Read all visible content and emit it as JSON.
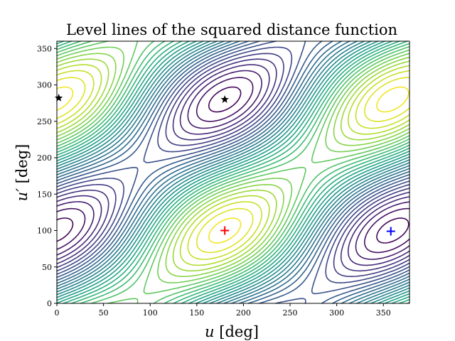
{
  "chart_data": {
    "type": "contour",
    "title": "Level lines of the squared distance function",
    "xlabel": {
      "var": "u",
      "unit": " [deg]"
    },
    "ylabel": {
      "var": "u′",
      "unit": " [deg]"
    },
    "xlim": [
      0,
      378
    ],
    "ylim": [
      0,
      360
    ],
    "xticks": [
      0,
      50,
      100,
      150,
      200,
      250,
      300,
      350
    ],
    "yticks": [
      0,
      50,
      100,
      150,
      200,
      250,
      300,
      350
    ],
    "colormap": "viridis",
    "grid": false,
    "contour_levels": 30,
    "minimum": {
      "u": 180,
      "u_prime": 100
    },
    "saddle": {
      "u": 180,
      "u_prime": 280
    },
    "markers": [
      {
        "kind": "star",
        "color": "#000000",
        "u": 180,
        "u_prime": 280
      },
      {
        "kind": "star",
        "color": "#000000",
        "u": 2,
        "u_prime": 282
      },
      {
        "kind": "plus",
        "color": "#ff0000",
        "u": 180,
        "u_prime": 100
      },
      {
        "kind": "plus",
        "color": "#0000ff",
        "u": 358,
        "u_prime": 99
      }
    ]
  }
}
